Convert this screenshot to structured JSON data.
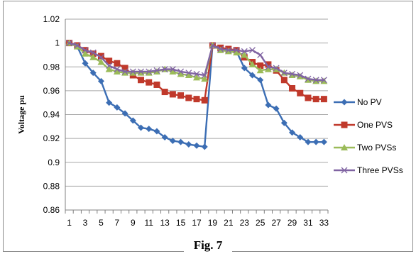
{
  "caption": "Fig. 7",
  "chart_data": {
    "type": "line",
    "title": "",
    "xlabel": "",
    "ylabel": "Voltage pu",
    "ylim": [
      0.86,
      1.02
    ],
    "yticks": [
      0.86,
      0.88,
      0.9,
      0.92,
      0.94,
      0.96,
      0.98,
      1,
      1.02
    ],
    "ytick_labels": [
      "0.86",
      "0.88",
      "0.9",
      "0.92",
      "0.94",
      "0.96",
      "0.98",
      "1",
      "1.02"
    ],
    "x": [
      1,
      2,
      3,
      4,
      5,
      6,
      7,
      8,
      9,
      10,
      11,
      12,
      13,
      14,
      15,
      16,
      17,
      18,
      19,
      20,
      21,
      22,
      23,
      24,
      25,
      26,
      27,
      28,
      29,
      30,
      31,
      32,
      33
    ],
    "xtick_labels": [
      "1",
      "3",
      "5",
      "7",
      "9",
      "11",
      "13",
      "15",
      "17",
      "19",
      "21",
      "23",
      "25",
      "27",
      "29",
      "31",
      "33"
    ],
    "grid": "horizontal",
    "legend_position": "right",
    "series": [
      {
        "name": "No PV",
        "color": "#3c6eb4",
        "marker": "diamond",
        "values": [
          1.0,
          0.997,
          0.983,
          0.975,
          0.968,
          0.95,
          0.946,
          0.941,
          0.935,
          0.929,
          0.928,
          0.926,
          0.921,
          0.918,
          0.917,
          0.915,
          0.914,
          0.913,
          0.998,
          0.995,
          0.994,
          0.993,
          0.979,
          0.973,
          0.969,
          0.948,
          0.945,
          0.933,
          0.925,
          0.921,
          0.917,
          0.917,
          0.917
        ]
      },
      {
        "name": "One PVS",
        "color": "#c0392b",
        "marker": "square",
        "values": [
          1.0,
          0.998,
          0.994,
          0.991,
          0.989,
          0.985,
          0.983,
          0.979,
          0.973,
          0.969,
          0.967,
          0.965,
          0.959,
          0.957,
          0.956,
          0.954,
          0.953,
          0.952,
          0.998,
          0.996,
          0.995,
          0.994,
          0.988,
          0.984,
          0.981,
          0.982,
          0.977,
          0.969,
          0.962,
          0.958,
          0.954,
          0.953,
          0.953
        ]
      },
      {
        "name": "Two PVSs",
        "color": "#9bbb59",
        "marker": "triangle",
        "values": [
          1.0,
          0.997,
          0.991,
          0.988,
          0.984,
          0.978,
          0.976,
          0.975,
          0.975,
          0.975,
          0.975,
          0.976,
          0.978,
          0.976,
          0.974,
          0.973,
          0.971,
          0.97,
          0.998,
          0.994,
          0.993,
          0.992,
          0.99,
          0.982,
          0.977,
          0.978,
          0.978,
          0.975,
          0.973,
          0.972,
          0.969,
          0.968,
          0.968
        ]
      },
      {
        "name": "Three PVSs",
        "color": "#8064a2",
        "marker": "x",
        "values": [
          1.0,
          0.998,
          0.994,
          0.992,
          0.988,
          0.981,
          0.978,
          0.976,
          0.976,
          0.976,
          0.976,
          0.977,
          0.978,
          0.978,
          0.976,
          0.975,
          0.974,
          0.973,
          0.998,
          0.995,
          0.994,
          0.994,
          0.993,
          0.994,
          0.99,
          0.98,
          0.979,
          0.975,
          0.974,
          0.973,
          0.97,
          0.969,
          0.969
        ]
      }
    ]
  }
}
